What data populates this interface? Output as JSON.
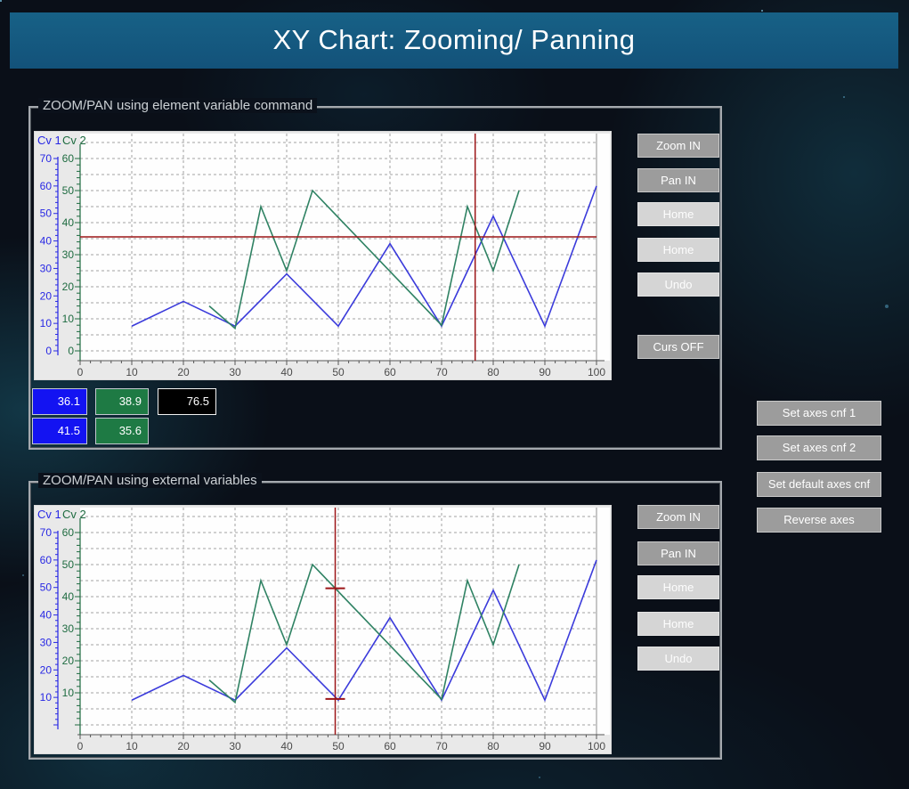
{
  "title_bar": {
    "title": "XY Chart: Zooming/ Panning"
  },
  "panels": {
    "top": {
      "label": "ZOOM/PAN using element variable command",
      "buttons": [
        {
          "label": "Zoom IN",
          "enabled": true
        },
        {
          "label": "Pan IN",
          "enabled": true
        },
        {
          "label": "Home",
          "enabled": false
        },
        {
          "label": "Home",
          "enabled": false
        },
        {
          "label": "Undo",
          "enabled": false
        },
        {
          "label": "Curs OFF",
          "enabled": true
        }
      ],
      "readouts": [
        {
          "value": "36.1",
          "bg": "#1313f2"
        },
        {
          "value": "38.9",
          "bg": "#1e7a44"
        },
        {
          "value": "76.5",
          "bg": "#000000"
        },
        {
          "value": "41.5",
          "bg": "#1313f2"
        },
        {
          "value": "35.6",
          "bg": "#1e7a44"
        }
      ]
    },
    "bottom": {
      "label": "ZOOM/PAN using external variables",
      "buttons": [
        {
          "label": "Zoom IN",
          "enabled": true
        },
        {
          "label": "Pan IN",
          "enabled": true
        },
        {
          "label": "Home",
          "enabled": false
        },
        {
          "label": "Home",
          "enabled": false
        },
        {
          "label": "Undo",
          "enabled": false
        }
      ]
    }
  },
  "side_buttons": [
    {
      "label": "Set axes cnf 1"
    },
    {
      "label": "Set axes cnf 2"
    },
    {
      "label": "Set default axes cnf"
    },
    {
      "label": "Reverse axes"
    }
  ],
  "colors": {
    "accent_bar": "#15597e",
    "cursor_red": "#9c1517",
    "series_blue": "#3b3bdb",
    "series_green": "#2f8263"
  },
  "chart_data": [
    {
      "type": "line",
      "title": "ZOOM/PAN using element variable command",
      "x_axis": {
        "min": 0,
        "max": 100,
        "tick_step": 10,
        "minor_step": 2
      },
      "y_axes": [
        {
          "name": "Cv 1",
          "min": 0,
          "max": 70,
          "tick_step": 10,
          "minor_step": 2,
          "color": "#2727e4",
          "show_zero_label": true
        },
        {
          "name": "Cv 2",
          "min": 0,
          "max": 60,
          "tick_step": 10,
          "minor_step": 2,
          "color": "#1e6b40",
          "show_zero_label": true
        }
      ],
      "grid": true,
      "legend_position": "top-left",
      "series": [
        {
          "name": "Cv 1",
          "axis": 0,
          "color": "#3b3bdb",
          "points": [
            [
              10,
              9
            ],
            [
              20,
              18
            ],
            [
              30,
              9
            ],
            [
              40,
              28
            ],
            [
              50,
              9
            ],
            [
              60,
              39
            ],
            [
              70,
              9
            ],
            [
              80,
              49
            ],
            [
              90,
              9
            ],
            [
              100,
              60
            ]
          ]
        },
        {
          "name": "Cv 2",
          "axis": 1,
          "color": "#2f8263",
          "points": [
            [
              25,
              14
            ],
            [
              30,
              7
            ],
            [
              35,
              45
            ],
            [
              40,
              25
            ],
            [
              45,
              50
            ],
            [
              70,
              8
            ],
            [
              75,
              45
            ],
            [
              80,
              25
            ],
            [
              85,
              50
            ]
          ]
        }
      ],
      "cursor": {
        "style": "full_crosshair",
        "x": 76.5,
        "y_axis1": 41.5,
        "y_axis2": 35.6,
        "color": "#9c1517"
      }
    },
    {
      "type": "line",
      "title": "ZOOM/PAN using external variables",
      "x_axis": {
        "min": 0,
        "max": 100,
        "tick_step": 10,
        "minor_step": 2
      },
      "y_axes": [
        {
          "name": "Cv 1",
          "min": 0,
          "max": 70,
          "tick_step": 10,
          "minor_step": 2,
          "color": "#2727e4",
          "show_zero_label": false
        },
        {
          "name": "Cv 2",
          "min": 0,
          "max": 60,
          "tick_step": 10,
          "minor_step": 2,
          "color": "#1e6b40",
          "show_zero_label": false
        }
      ],
      "grid": true,
      "legend_position": "top-left",
      "series": [
        {
          "name": "Cv 1",
          "axis": 0,
          "color": "#3b3bdb",
          "points": [
            [
              10,
              9
            ],
            [
              20,
              18
            ],
            [
              30,
              9
            ],
            [
              40,
              28
            ],
            [
              50,
              9
            ],
            [
              60,
              39
            ],
            [
              70,
              9
            ],
            [
              80,
              49
            ],
            [
              90,
              9
            ],
            [
              100,
              60
            ]
          ]
        },
        {
          "name": "Cv 2",
          "axis": 1,
          "color": "#2f8263",
          "points": [
            [
              25,
              14
            ],
            [
              30,
              7
            ],
            [
              35,
              45
            ],
            [
              40,
              25
            ],
            [
              45,
              50
            ],
            [
              70,
              8
            ],
            [
              75,
              45
            ],
            [
              80,
              25
            ],
            [
              85,
              50
            ]
          ]
        }
      ],
      "cursor": {
        "style": "marks",
        "x": 49.4,
        "marks_axis2": [
          42.6,
          8.1
        ],
        "color": "#9c1517"
      }
    }
  ]
}
